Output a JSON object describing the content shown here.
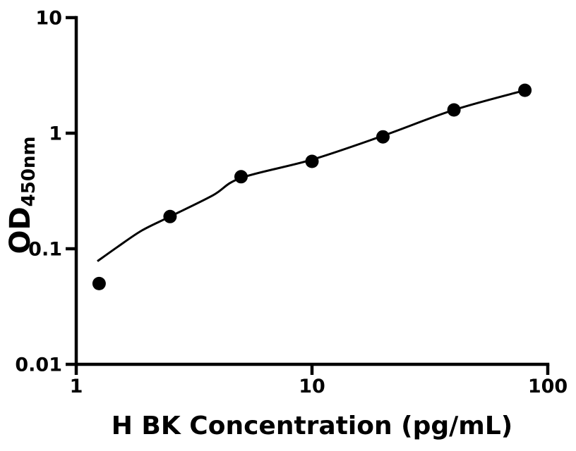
{
  "page": {
    "background": "#ffffff",
    "foreground": "#000000"
  },
  "chart_data": {
    "type": "scatter",
    "title": "",
    "xlabel": "H BK Concentration (pg/mL)",
    "ylabel": "OD450nm",
    "ylabel_base": "OD",
    "ylabel_sub": "450nm",
    "x_scale": "log",
    "y_scale": "log",
    "xlim": [
      1,
      100
    ],
    "ylim": [
      0.01,
      10
    ],
    "grid": false,
    "legend": false,
    "marker": {
      "shape": "circle",
      "color": "#000000",
      "radius_px": 9.5
    },
    "curve_color": "#000000",
    "x_ticks": [
      {
        "value": 1,
        "label": "1"
      },
      {
        "value": 10,
        "label": "10"
      },
      {
        "value": 100,
        "label": "100"
      }
    ],
    "y_ticks": [
      {
        "value": 10,
        "label": "10"
      },
      {
        "value": 1,
        "label": "1"
      },
      {
        "value": 0.1,
        "label": "0.1"
      },
      {
        "value": 0.01,
        "label": "0.01"
      }
    ],
    "series": [
      {
        "name": "standard-points",
        "type": "scatter",
        "x": [
          1.25,
          2.5,
          5,
          10,
          20,
          40,
          80
        ],
        "y": [
          0.05,
          0.19,
          0.42,
          0.57,
          0.93,
          1.59,
          2.35
        ]
      },
      {
        "name": "fitted-curve",
        "type": "line",
        "x": [
          1.23,
          1.5,
          1.9,
          2.5,
          3.8,
          5,
          10,
          20,
          40,
          80
        ],
        "y": [
          0.078,
          0.104,
          0.144,
          0.19,
          0.29,
          0.41,
          0.59,
          0.95,
          1.59,
          2.35
        ]
      }
    ]
  }
}
